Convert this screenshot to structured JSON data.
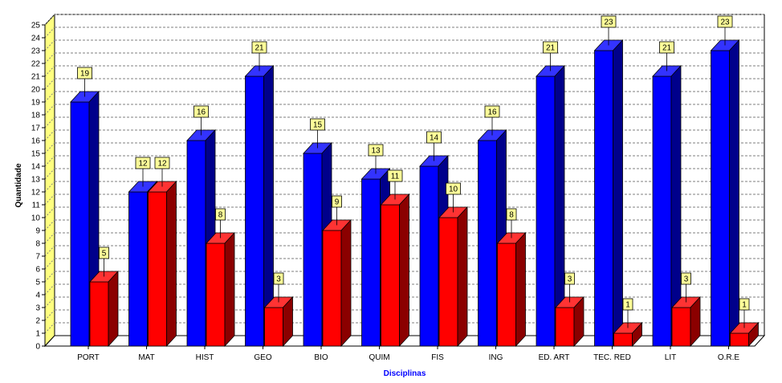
{
  "chart_data": {
    "type": "bar",
    "xlabel": "Disciplinas",
    "ylabel": "Quantidade",
    "ylim": [
      0,
      25
    ],
    "y_ticks": [
      0,
      1,
      2,
      3,
      4,
      5,
      6,
      7,
      8,
      9,
      10,
      11,
      12,
      13,
      14,
      15,
      16,
      17,
      18,
      19,
      20,
      21,
      22,
      23,
      24,
      25
    ],
    "grid": true,
    "style": "3d",
    "categories": [
      "PORT",
      "MAT",
      "HIST",
      "GEO",
      "BIO",
      "QUIM",
      "FIS",
      "ING",
      "ED. ART",
      "TEC. RED",
      "LIT",
      "O.R.E"
    ],
    "series": [
      {
        "values": [
          19,
          12,
          16,
          21,
          15,
          13,
          14,
          16,
          21,
          23,
          21,
          23
        ]
      },
      {
        "values": [
          5,
          12,
          8,
          3,
          9,
          11,
          10,
          8,
          3,
          1,
          3,
          1
        ]
      }
    ],
    "colors": {
      "series_1": "#0000ff",
      "series_2": "#ff0000",
      "wall": "#ffff80",
      "label_box": "#ffff99",
      "xlabel": "#0000ff",
      "ylabel": "#000000"
    }
  }
}
